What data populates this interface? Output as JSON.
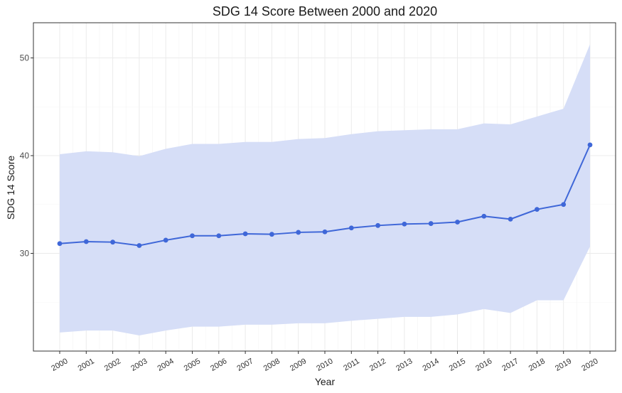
{
  "chart_data": {
    "type": "line",
    "title": "SDG 14 Score Between 2000 and 2020",
    "xlabel": "Year",
    "ylabel": "SDG 14 Score",
    "categories": [
      "2000",
      "2001",
      "2002",
      "2003",
      "2004",
      "2005",
      "2006",
      "2007",
      "2008",
      "2009",
      "2010",
      "2011",
      "2012",
      "2013",
      "2014",
      "2015",
      "2016",
      "2017",
      "2018",
      "2019",
      "2020"
    ],
    "series": [
      {
        "values": [
          31.0,
          31.2,
          31.15,
          30.8,
          31.35,
          31.8,
          31.8,
          32.0,
          31.95,
          32.15,
          32.2,
          32.6,
          32.85,
          33.0,
          33.05,
          33.2,
          33.8,
          33.5,
          34.5,
          35.0,
          41.1
        ],
        "lower": [
          21.9,
          22.1,
          22.1,
          21.6,
          22.1,
          22.5,
          22.5,
          22.7,
          22.7,
          22.85,
          22.85,
          23.1,
          23.3,
          23.5,
          23.5,
          23.75,
          24.3,
          23.9,
          25.2,
          25.2,
          30.7
        ],
        "upper": [
          40.15,
          40.45,
          40.35,
          39.95,
          40.7,
          41.2,
          41.2,
          41.4,
          41.4,
          41.7,
          41.8,
          42.2,
          42.5,
          42.6,
          42.7,
          42.7,
          43.3,
          43.2,
          44.0,
          44.8,
          51.4
        ]
      }
    ],
    "ylim": [
      20.0,
      53.6
    ],
    "yticks": [
      30,
      40,
      50
    ],
    "grid": true,
    "colors": {
      "line": "#3f67d8",
      "band": "#d6def7",
      "grid": "#ebebeb",
      "frame": "#333333"
    }
  }
}
